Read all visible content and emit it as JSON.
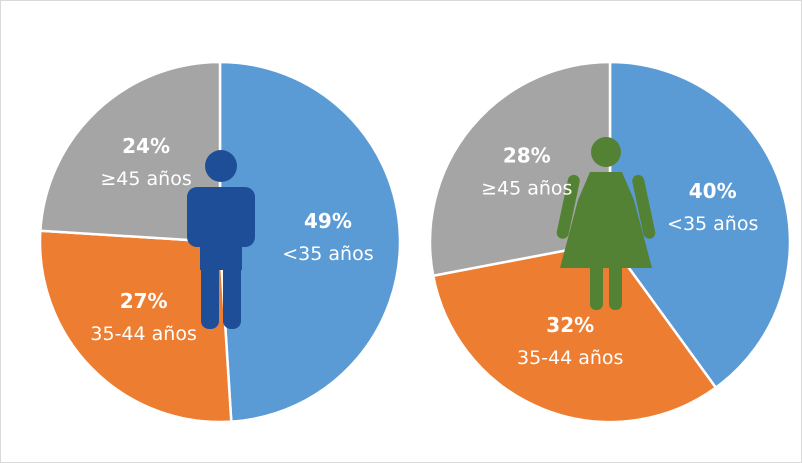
{
  "chart_data": [
    {
      "type": "pie",
      "categories": [
        "<35 años",
        "35-44 años",
        "≥45 años"
      ],
      "values": [
        49,
        27,
        24
      ],
      "value_labels": [
        "49%",
        "27%",
        "24%"
      ],
      "colors": [
        "#5b9bd5",
        "#ed7d31",
        "#a5a5a5"
      ]
    },
    {
      "type": "pie",
      "categories": [
        "<35 años",
        "35-44 años",
        "≥45 años"
      ],
      "values": [
        40,
        32,
        28
      ],
      "value_labels": [
        "40%",
        "32%",
        "28%"
      ],
      "colors": [
        "#5b9bd5",
        "#ed7d31",
        "#a5a5a5"
      ]
    }
  ]
}
